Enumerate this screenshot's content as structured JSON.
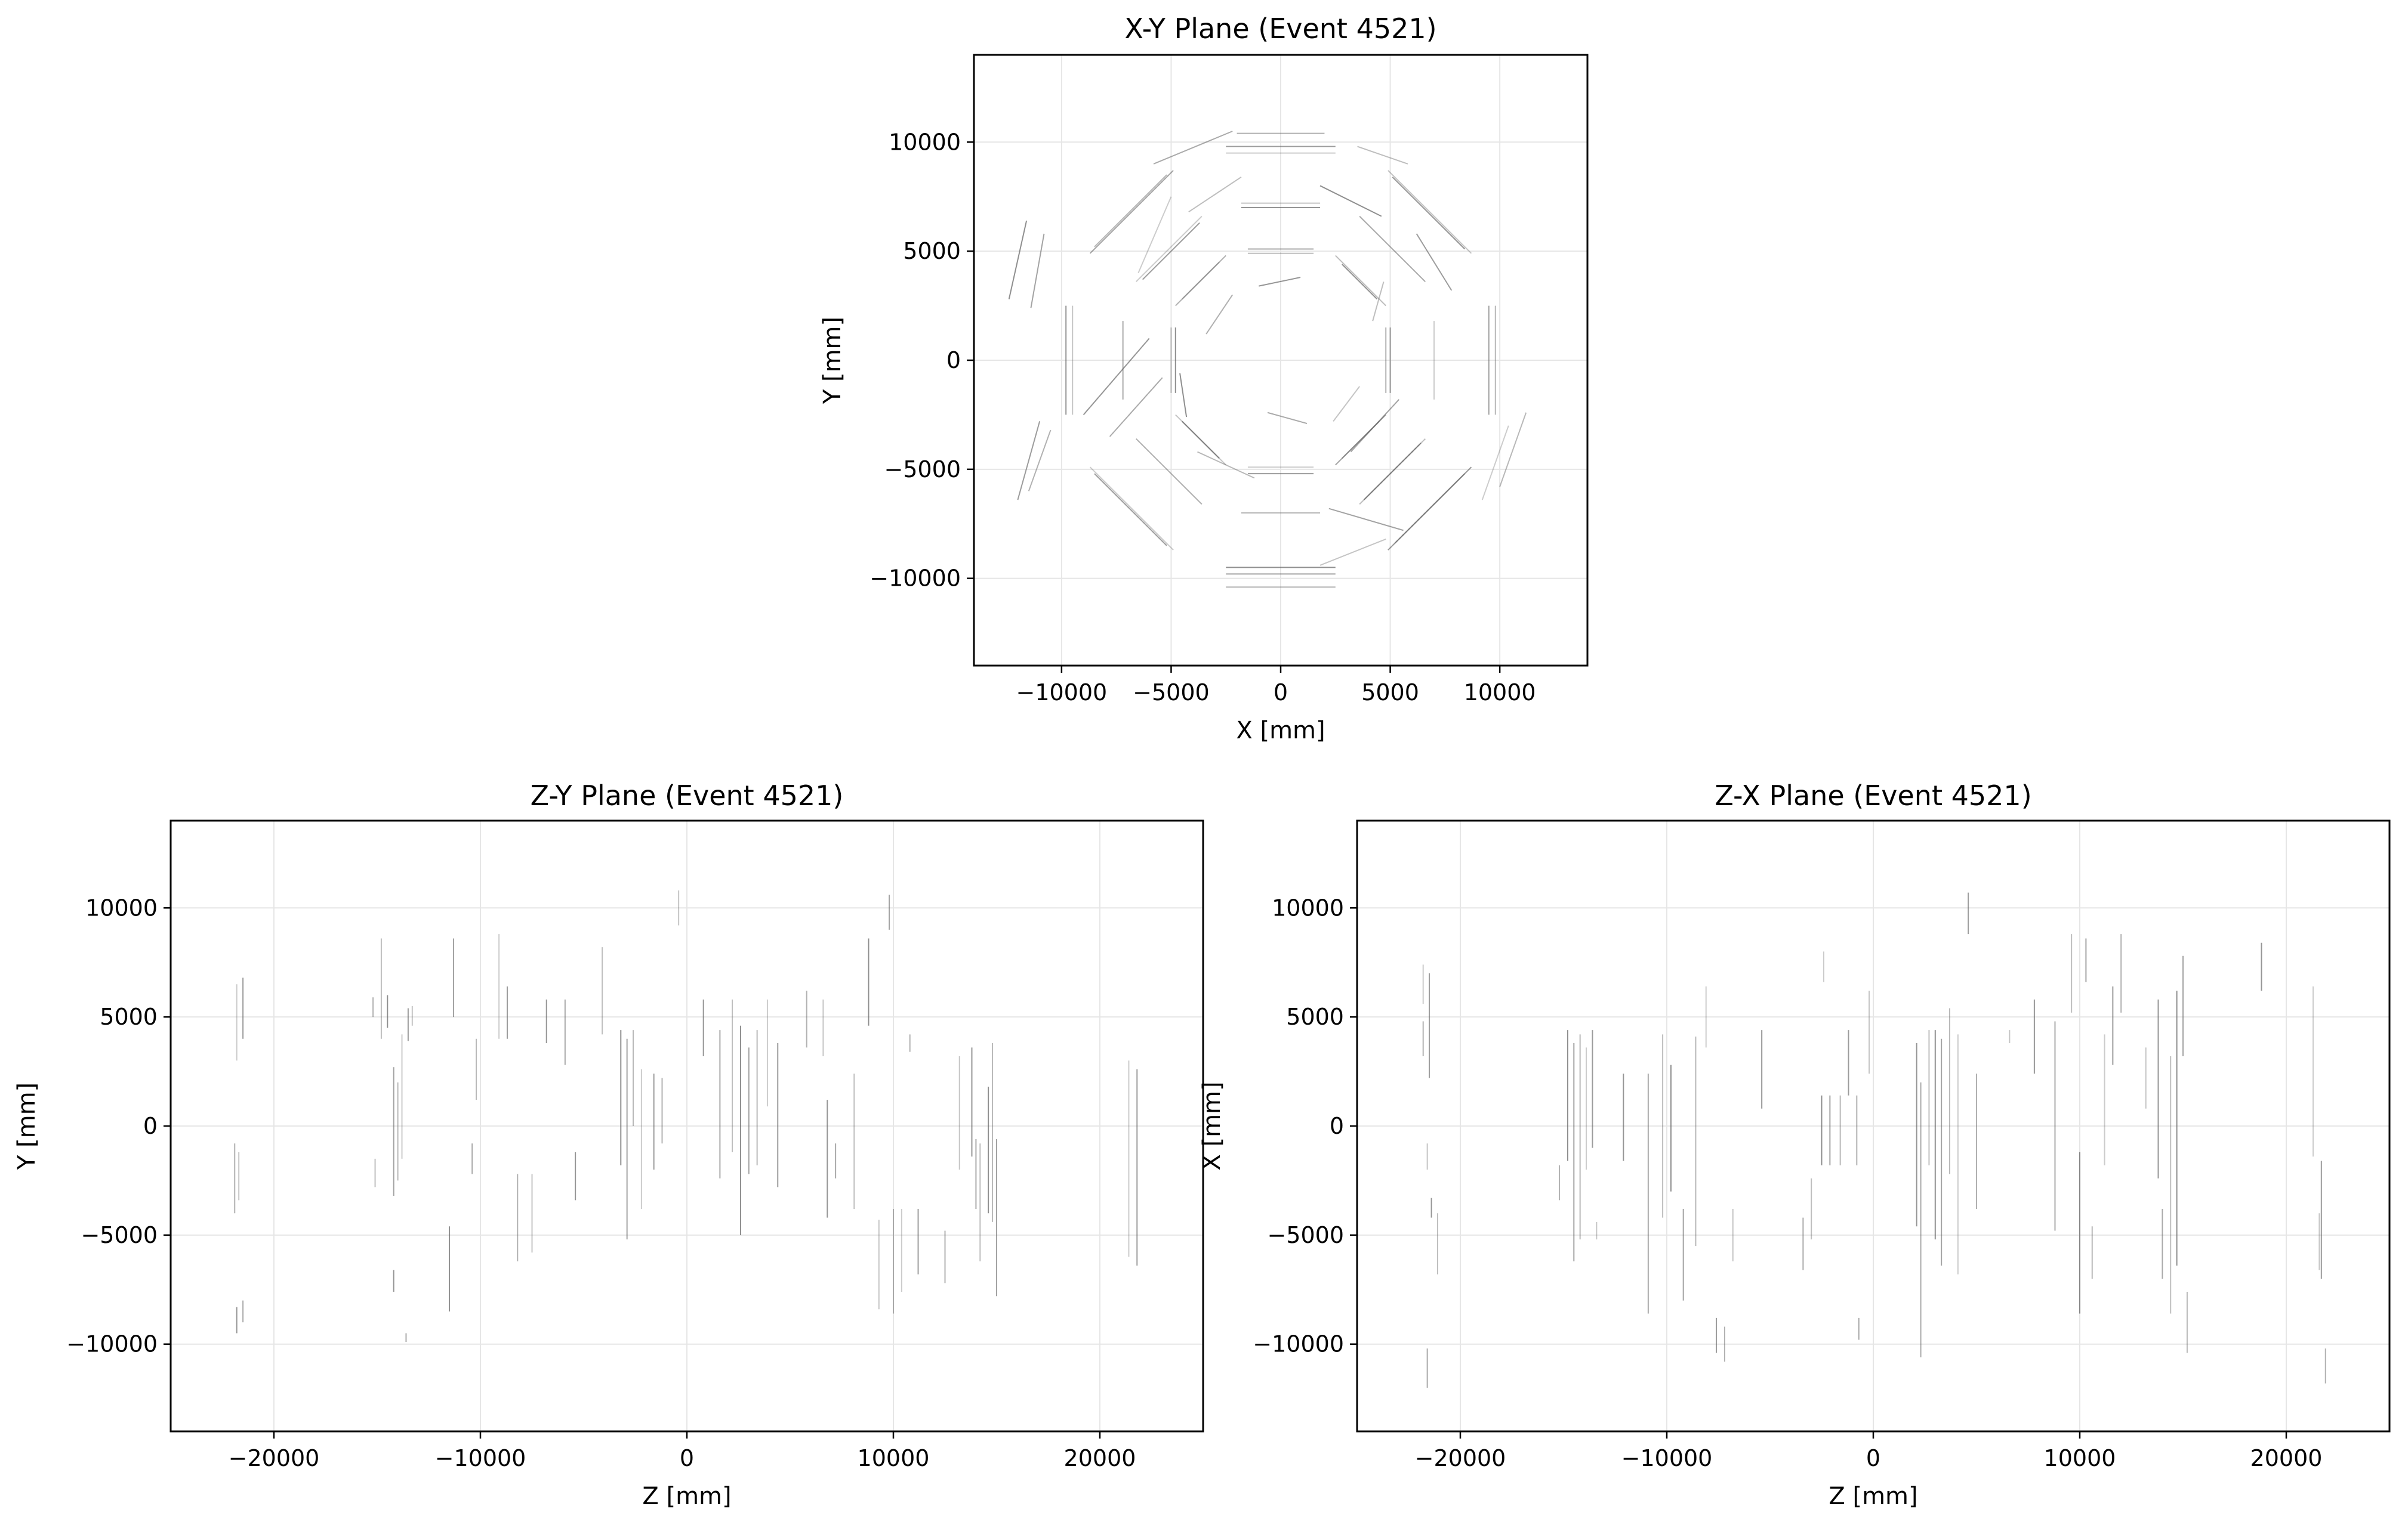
{
  "figure": {
    "background": "#ffffff"
  },
  "chart_data": [
    {
      "type": "scatter",
      "title": "X-Y Plane (Event 4521)",
      "xlabel": "X [mm]",
      "ylabel": "Y [mm]",
      "xlim": [
        -14000,
        14000
      ],
      "ylim": [
        -14000,
        14000
      ],
      "xticks": [
        -10000,
        -5000,
        0,
        5000,
        10000
      ],
      "yticks": [
        -10000,
        -5000,
        0,
        5000,
        10000
      ],
      "xtick_labels": [
        "−10000",
        "−5000",
        "0",
        "5000",
        "10000"
      ],
      "ytick_labels": [
        "−10000",
        "−5000",
        "0",
        "5000",
        "10000"
      ],
      "grid": true,
      "segment_color": "#555555",
      "segments": [
        [
          -2500,
          9500,
          2500,
          9500
        ],
        [
          -2500,
          9800,
          2500,
          9800
        ],
        [
          -2000,
          10400,
          2000,
          10400
        ],
        [
          -1800,
          7200,
          1800,
          7200
        ],
        [
          -1800,
          7000,
          1800,
          7000
        ],
        [
          -1500,
          5100,
          1500,
          5100
        ],
        [
          -1500,
          4900,
          1500,
          4900
        ],
        [
          -2500,
          -9500,
          2500,
          -9500
        ],
        [
          -2500,
          -9800,
          2500,
          -9800
        ],
        [
          -1800,
          -7000,
          1800,
          -7000
        ],
        [
          -1500,
          -4900,
          1500,
          -4900
        ],
        [
          -1500,
          -5200,
          1500,
          -5200
        ],
        [
          -2500,
          -10400,
          2500,
          -10400
        ],
        [
          -9500,
          2500,
          -9500,
          -2500
        ],
        [
          -9800,
          2500,
          -9800,
          -2500
        ],
        [
          -7200,
          1800,
          -7200,
          -1800
        ],
        [
          -5000,
          1500,
          -5000,
          -1500
        ],
        [
          -4800,
          1500,
          -4800,
          -1500
        ],
        [
          9500,
          2500,
          9500,
          -2500
        ],
        [
          9800,
          2500,
          9800,
          -2500
        ],
        [
          7000,
          1800,
          7000,
          -1800
        ],
        [
          5000,
          1500,
          5000,
          -1500
        ],
        [
          4800,
          1500,
          4800,
          -1500
        ],
        [
          4900,
          8700,
          8700,
          4900
        ],
        [
          5100,
          8400,
          8400,
          5100
        ],
        [
          3600,
          6600,
          6600,
          3600
        ],
        [
          2500,
          4800,
          4800,
          2500
        ],
        [
          2800,
          4400,
          4400,
          2800
        ],
        [
          -4900,
          8700,
          -8700,
          4900
        ],
        [
          -5200,
          8500,
          -8500,
          5200
        ],
        [
          -3600,
          6600,
          -6600,
          3600
        ],
        [
          -3700,
          6300,
          -6300,
          3700
        ],
        [
          -2500,
          4800,
          -4800,
          2500
        ],
        [
          -2800,
          4500,
          -4500,
          2800
        ],
        [
          4900,
          -8700,
          8700,
          -4900
        ],
        [
          5200,
          -8400,
          8400,
          -5200
        ],
        [
          3600,
          -6600,
          6600,
          -3600
        ],
        [
          3800,
          -6400,
          6400,
          -3800
        ],
        [
          2500,
          -4800,
          4800,
          -2500
        ],
        [
          2800,
          -4500,
          4500,
          -2800
        ],
        [
          -4900,
          -8700,
          -8700,
          -4900
        ],
        [
          -5200,
          -8500,
          -8500,
          -5200
        ],
        [
          -3600,
          -6600,
          -6600,
          -3600
        ],
        [
          -2500,
          -4800,
          -4800,
          -2500
        ],
        [
          -2800,
          -4500,
          -4500,
          -2800
        ],
        [
          -5800,
          9000,
          -2200,
          10500
        ],
        [
          3500,
          9800,
          5800,
          9000
        ],
        [
          -11600,
          6400,
          -12400,
          2800
        ],
        [
          -10800,
          5800,
          -11400,
          2400
        ],
        [
          11200,
          -2400,
          10000,
          -5800
        ],
        [
          10400,
          -3000,
          9200,
          -6400
        ],
        [
          -11000,
          -2800,
          -12000,
          -6400
        ],
        [
          -10500,
          -3200,
          -11500,
          -6000
        ],
        [
          1800,
          -9400,
          4800,
          -8200
        ],
        [
          -9000,
          -2500,
          -6000,
          1000
        ],
        [
          -7800,
          -3500,
          -5400,
          -800
        ],
        [
          -4200,
          6800,
          -1800,
          8400
        ],
        [
          1800,
          8000,
          4600,
          6600
        ],
        [
          3200,
          -4200,
          5400,
          -1800
        ],
        [
          -3800,
          -4200,
          -1200,
          -5400
        ],
        [
          -6500,
          4000,
          -5000,
          7500
        ],
        [
          6200,
          5800,
          7800,
          3200
        ],
        [
          -2200,
          3000,
          -3400,
          1200
        ],
        [
          2400,
          -2800,
          3600,
          -1200
        ],
        [
          -1000,
          3400,
          900,
          3800
        ],
        [
          -600,
          -2400,
          1200,
          -2900
        ],
        [
          4200,
          1800,
          4700,
          3600
        ],
        [
          -4600,
          -600,
          -4300,
          -2600
        ],
        [
          2200,
          -6800,
          5600,
          -7800
        ]
      ]
    },
    {
      "type": "scatter",
      "title": "Z-Y Plane (Event 4521)",
      "xlabel": "Z [mm]",
      "ylabel": "Y [mm]",
      "xlim": [
        -25000,
        25000
      ],
      "ylim": [
        -14000,
        14000
      ],
      "xticks": [
        -20000,
        -10000,
        0,
        10000,
        20000
      ],
      "yticks": [
        -10000,
        -5000,
        0,
        5000,
        10000
      ],
      "xtick_labels": [
        "−20000",
        "−10000",
        "0",
        "10000",
        "20000"
      ],
      "ytick_labels": [
        "−10000",
        "−5000",
        "0",
        "5000",
        "10000"
      ],
      "grid": true,
      "segment_color": "#555555",
      "segments": [
        [
          -21800,
          6500,
          -21800,
          3000
        ],
        [
          -21500,
          6800,
          -21500,
          4000
        ],
        [
          -21900,
          -800,
          -21900,
          -4000
        ],
        [
          -21700,
          -1200,
          -21700,
          -3400
        ],
        [
          -21800,
          -8300,
          -21800,
          -9500
        ],
        [
          -21500,
          -8000,
          -21500,
          -9000
        ],
        [
          -14800,
          8600,
          -14800,
          4000
        ],
        [
          -14500,
          6000,
          -14500,
          4500
        ],
        [
          -14200,
          2700,
          -14200,
          -3200
        ],
        [
          -14000,
          2000,
          -14000,
          -2500
        ],
        [
          -13800,
          4200,
          -13800,
          -1500
        ],
        [
          -13500,
          5400,
          -13500,
          3900
        ],
        [
          -15200,
          5900,
          -15200,
          5000
        ],
        [
          -13300,
          5500,
          -13300,
          4600
        ],
        [
          -14200,
          -6600,
          -14200,
          -7600
        ],
        [
          -13600,
          -9500,
          -13600,
          -9900
        ],
        [
          -15100,
          -1500,
          -15100,
          -2800
        ],
        [
          -11500,
          -4600,
          -11500,
          -8500
        ],
        [
          -11300,
          8600,
          -11300,
          5000
        ],
        [
          -10200,
          4000,
          -10200,
          1200
        ],
        [
          -9100,
          8800,
          -9100,
          4000
        ],
        [
          -8700,
          6400,
          -8700,
          4000
        ],
        [
          -8200,
          -2200,
          -8200,
          -6200
        ],
        [
          -7500,
          -2200,
          -7500,
          -5800
        ],
        [
          -6800,
          5800,
          -6800,
          3800
        ],
        [
          -5900,
          5800,
          -5900,
          2800
        ],
        [
          -4100,
          8200,
          -4100,
          4200
        ],
        [
          -3200,
          4400,
          -3200,
          -1800
        ],
        [
          -2900,
          4000,
          -2900,
          -5200
        ],
        [
          -2600,
          4400,
          -2600,
          0
        ],
        [
          -2200,
          2600,
          -2200,
          -3800
        ],
        [
          -1600,
          2400,
          -1600,
          -2000
        ],
        [
          -1200,
          2200,
          -1200,
          -800
        ],
        [
          -400,
          10800,
          -400,
          9200
        ],
        [
          800,
          5800,
          800,
          3200
        ],
        [
          1600,
          4400,
          1600,
          -2400
        ],
        [
          2200,
          5800,
          2200,
          -1200
        ],
        [
          2600,
          4600,
          2600,
          -5000
        ],
        [
          3000,
          3600,
          3000,
          -2200
        ],
        [
          3400,
          4400,
          3400,
          -1800
        ],
        [
          3900,
          5800,
          3900,
          900
        ],
        [
          4400,
          3800,
          4400,
          -2800
        ],
        [
          5800,
          6200,
          5800,
          3600
        ],
        [
          6600,
          5800,
          6600,
          3200
        ],
        [
          6800,
          1200,
          6800,
          -4200
        ],
        [
          7200,
          -800,
          7200,
          -2400
        ],
        [
          8100,
          2400,
          8100,
          -3800
        ],
        [
          8800,
          8600,
          8800,
          4600
        ],
        [
          9800,
          10600,
          9800,
          9000
        ],
        [
          10000,
          -3800,
          10000,
          -8600
        ],
        [
          10400,
          -3800,
          10400,
          -7600
        ],
        [
          11200,
          -3800,
          11200,
          -6800
        ],
        [
          10800,
          4200,
          10800,
          3400
        ],
        [
          13200,
          3200,
          13200,
          -2000
        ],
        [
          13800,
          3600,
          13800,
          -1400
        ],
        [
          14000,
          -600,
          14000,
          -3800
        ],
        [
          14200,
          -800,
          14200,
          -6200
        ],
        [
          14600,
          1800,
          14600,
          -4000
        ],
        [
          15000,
          -600,
          15000,
          -7800
        ],
        [
          14800,
          3800,
          14800,
          -4400
        ],
        [
          21400,
          3000,
          21400,
          -6000
        ],
        [
          21800,
          2600,
          21800,
          -6400
        ],
        [
          12500,
          -4800,
          12500,
          -7200
        ],
        [
          9300,
          -4300,
          9300,
          -8400
        ],
        [
          -5400,
          -1200,
          -5400,
          -3400
        ],
        [
          -10400,
          -800,
          -10400,
          -2200
        ]
      ]
    },
    {
      "type": "scatter",
      "title": "Z-X Plane (Event 4521)",
      "xlabel": "Z [mm]",
      "ylabel": "X [mm]",
      "xlim": [
        -25000,
        25000
      ],
      "ylim": [
        -14000,
        14000
      ],
      "xticks": [
        -20000,
        -10000,
        0,
        10000,
        20000
      ],
      "yticks": [
        -10000,
        -5000,
        0,
        5000,
        10000
      ],
      "xtick_labels": [
        "−20000",
        "−10000",
        "0",
        "10000",
        "20000"
      ],
      "ytick_labels": [
        "−10000",
        "−5000",
        "0",
        "5000",
        "10000"
      ],
      "grid": true,
      "segment_color": "#555555",
      "segments": [
        [
          -21800,
          7400,
          -21800,
          5600
        ],
        [
          -21500,
          7000,
          -21500,
          2200
        ],
        [
          -21800,
          4800,
          -21800,
          3200
        ],
        [
          -21600,
          -800,
          -21600,
          -2000
        ],
        [
          -21400,
          -3300,
          -21400,
          -4200
        ],
        [
          -21600,
          -10200,
          -21600,
          -12000
        ],
        [
          -21100,
          -4000,
          -21100,
          -6800
        ],
        [
          -14800,
          4400,
          -14800,
          -1600
        ],
        [
          -14500,
          3800,
          -14500,
          -6200
        ],
        [
          -14200,
          4200,
          -14200,
          -5200
        ],
        [
          -13900,
          3600,
          -13900,
          -2000
        ],
        [
          -13600,
          4400,
          -13600,
          -1000
        ],
        [
          -15200,
          -1800,
          -15200,
          -3400
        ],
        [
          -13400,
          -4400,
          -13400,
          -5200
        ],
        [
          -12100,
          2400,
          -12100,
          -1600
        ],
        [
          -10900,
          2400,
          -10900,
          -8600
        ],
        [
          -10200,
          4200,
          -10200,
          -4200
        ],
        [
          -9800,
          2800,
          -9800,
          -3000
        ],
        [
          -9200,
          -3800,
          -9200,
          -8000
        ],
        [
          -8600,
          4100,
          -8600,
          -5500
        ],
        [
          -8100,
          6400,
          -8100,
          3600
        ],
        [
          -7600,
          -8800,
          -7600,
          -10400
        ],
        [
          -7200,
          -9200,
          -7200,
          -10800
        ],
        [
          -6800,
          -3800,
          -6800,
          -6200
        ],
        [
          -5400,
          4400,
          -5400,
          800
        ],
        [
          -3400,
          -4200,
          -3400,
          -6600
        ],
        [
          -3000,
          -2400,
          -3000,
          -5200
        ],
        [
          -2500,
          1400,
          -2500,
          -1800
        ],
        [
          -2100,
          1400,
          -2100,
          -1800
        ],
        [
          -1600,
          1400,
          -1600,
          -1800
        ],
        [
          -2400,
          8000,
          -2400,
          6600
        ],
        [
          -1200,
          4400,
          -1200,
          1400
        ],
        [
          -800,
          1400,
          -800,
          -1800
        ],
        [
          -200,
          6200,
          -200,
          2400
        ],
        [
          2100,
          3800,
          2100,
          -4600
        ],
        [
          2300,
          2000,
          2300,
          -10600
        ],
        [
          2700,
          4400,
          2700,
          -1800
        ],
        [
          3000,
          4400,
          3000,
          -5200
        ],
        [
          3300,
          4000,
          3300,
          -6400
        ],
        [
          3700,
          5400,
          3700,
          -2200
        ],
        [
          4100,
          4200,
          4100,
          -6800
        ],
        [
          4600,
          10700,
          4600,
          8800
        ],
        [
          5000,
          2400,
          5000,
          -3800
        ],
        [
          6600,
          4400,
          6600,
          3800
        ],
        [
          7800,
          5800,
          7800,
          2400
        ],
        [
          8800,
          4800,
          8800,
          -4800
        ],
        [
          9600,
          8800,
          9600,
          5200
        ],
        [
          10000,
          -1200,
          10000,
          -8600
        ],
        [
          10300,
          8600,
          10300,
          6600
        ],
        [
          10600,
          -4600,
          10600,
          -7000
        ],
        [
          11200,
          4200,
          11200,
          -1800
        ],
        [
          11600,
          6400,
          11600,
          2800
        ],
        [
          12000,
          8800,
          12000,
          5200
        ],
        [
          13200,
          3600,
          13200,
          800
        ],
        [
          13800,
          5800,
          13800,
          -2400
        ],
        [
          14000,
          -3800,
          14000,
          -7000
        ],
        [
          14400,
          3200,
          14400,
          -8600
        ],
        [
          14700,
          6200,
          14700,
          -6400
        ],
        [
          15000,
          7800,
          15000,
          3200
        ],
        [
          15200,
          -7600,
          15200,
          -10400
        ],
        [
          21300,
          6400,
          21300,
          -1400
        ],
        [
          21700,
          -1600,
          21700,
          -7000
        ],
        [
          21900,
          -10200,
          21900,
          -11800
        ],
        [
          21600,
          -4000,
          21600,
          -6600
        ],
        [
          18800,
          8400,
          18800,
          6200
        ],
        [
          -700,
          -8800,
          -700,
          -9800
        ]
      ]
    }
  ]
}
